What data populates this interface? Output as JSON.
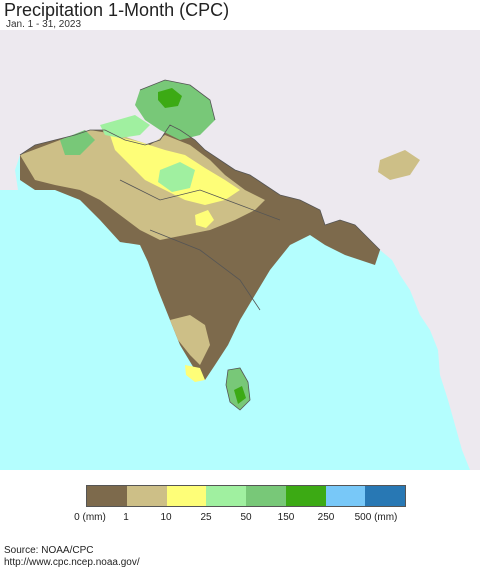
{
  "title": "Precipitation 1-Month (CPC)",
  "subtitle": "Jan. 1 - 31, 2023",
  "legend": {
    "colors": [
      "#7d6a4c",
      "#cdbf87",
      "#fefe78",
      "#a0f0a0",
      "#78c878",
      "#3caa14",
      "#78c8f8",
      "#2878b4"
    ],
    "labels": [
      "0 (mm)",
      "1",
      "10",
      "25",
      "50",
      "150",
      "250",
      "500 (mm)"
    ]
  },
  "source": {
    "line1": "Source: NOAA/CPC",
    "line2": "http://www.cpc.ncep.noaa.gov/"
  },
  "map": {
    "colors": {
      "ocean": "#b4fefe",
      "land_outside": "#ede9ef",
      "dry": "#7d6a4c",
      "light": "#cdbf87",
      "yellow": "#fefe78",
      "lightgreen": "#a0f0a0",
      "green": "#78c878",
      "darkgreen": "#3caa14",
      "border": "#555555"
    }
  }
}
